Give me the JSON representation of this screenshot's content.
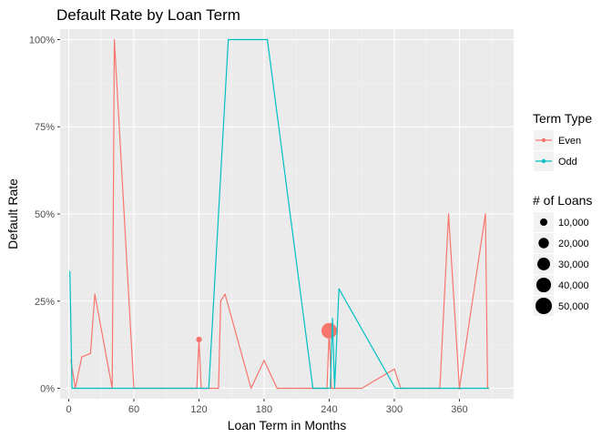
{
  "chart_data": {
    "type": "line",
    "title": "Default Rate by Loan Term",
    "xlabel": "Loan Term in Months",
    "ylabel": "Default Rate",
    "xlim": [
      -8,
      410
    ],
    "ylim": [
      -0.03,
      1.03
    ],
    "x_ticks": [
      0,
      60,
      120,
      180,
      240,
      300,
      360
    ],
    "x_tick_labels": [
      "0",
      "60",
      "120",
      "180",
      "240",
      "300",
      "360"
    ],
    "y_ticks": [
      0,
      0.25,
      0.5,
      0.75,
      1.0
    ],
    "y_tick_labels": [
      "0%",
      "25%",
      "50%",
      "75%",
      "100%"
    ],
    "grid": true,
    "series": [
      {
        "name": "Even",
        "color": "#F8766D",
        "points": [
          {
            "x": 2,
            "y": 0.08,
            "n": 100
          },
          {
            "x": 6,
            "y": 0.0,
            "n": 100
          },
          {
            "x": 12,
            "y": 0.09,
            "n": 300
          },
          {
            "x": 20,
            "y": 0.1,
            "n": 100
          },
          {
            "x": 24,
            "y": 0.27,
            "n": 200
          },
          {
            "x": 40,
            "y": 0.0,
            "n": 100
          },
          {
            "x": 42,
            "y": 1.0,
            "n": 10
          },
          {
            "x": 60,
            "y": 0.0,
            "n": 500
          },
          {
            "x": 118,
            "y": 0.0,
            "n": 100
          },
          {
            "x": 120,
            "y": 0.14,
            "n": 6000
          },
          {
            "x": 122,
            "y": 0.0,
            "n": 100
          },
          {
            "x": 138,
            "y": 0.0,
            "n": 100
          },
          {
            "x": 140,
            "y": 0.25,
            "n": 200
          },
          {
            "x": 144,
            "y": 0.27,
            "n": 200
          },
          {
            "x": 168,
            "y": 0.0,
            "n": 100
          },
          {
            "x": 180,
            "y": 0.08,
            "n": 200
          },
          {
            "x": 192,
            "y": 0.0,
            "n": 100
          },
          {
            "x": 238,
            "y": 0.0,
            "n": 100
          },
          {
            "x": 240,
            "y": 0.165,
            "n": 45000
          },
          {
            "x": 242,
            "y": 0.0,
            "n": 100
          },
          {
            "x": 270,
            "y": 0.0,
            "n": 100
          },
          {
            "x": 300,
            "y": 0.055,
            "n": 300
          },
          {
            "x": 306,
            "y": 0.0,
            "n": 100
          },
          {
            "x": 342,
            "y": 0.0,
            "n": 100
          },
          {
            "x": 350,
            "y": 0.5,
            "n": 50
          },
          {
            "x": 360,
            "y": 0.0,
            "n": 1000
          },
          {
            "x": 384,
            "y": 0.5,
            "n": 50
          },
          {
            "x": 386,
            "y": 0.0,
            "n": 100
          }
        ]
      },
      {
        "name": "Odd",
        "color": "#00BFC4",
        "points": [
          {
            "x": 1,
            "y": 0.335,
            "n": 50
          },
          {
            "x": 3,
            "y": 0.0,
            "n": 100
          },
          {
            "x": 15,
            "y": 0.0,
            "n": 100
          },
          {
            "x": 117,
            "y": 0.0,
            "n": 100
          },
          {
            "x": 123,
            "y": 0.0,
            "n": 100
          },
          {
            "x": 129,
            "y": 0.0,
            "n": 100
          },
          {
            "x": 147,
            "y": 1.0,
            "n": 20
          },
          {
            "x": 153,
            "y": 1.0,
            "n": 20
          },
          {
            "x": 183,
            "y": 1.0,
            "n": 20
          },
          {
            "x": 225,
            "y": 0.0,
            "n": 100
          },
          {
            "x": 241,
            "y": 0.0,
            "n": 100
          },
          {
            "x": 243,
            "y": 0.2,
            "n": 200
          },
          {
            "x": 245,
            "y": 0.0,
            "n": 100
          },
          {
            "x": 249,
            "y": 0.285,
            "n": 100
          },
          {
            "x": 301,
            "y": 0.0,
            "n": 100
          },
          {
            "x": 387,
            "y": 0.0,
            "n": 100
          }
        ]
      }
    ],
    "legend": {
      "placement": "right",
      "color_title": "Term Type",
      "size_title": "# of Loans",
      "size_breaks": [
        10000,
        20000,
        30000,
        40000,
        50000
      ],
      "size_labels": [
        "10,000",
        "20,000",
        "30,000",
        "40,000",
        "50,000"
      ]
    }
  }
}
